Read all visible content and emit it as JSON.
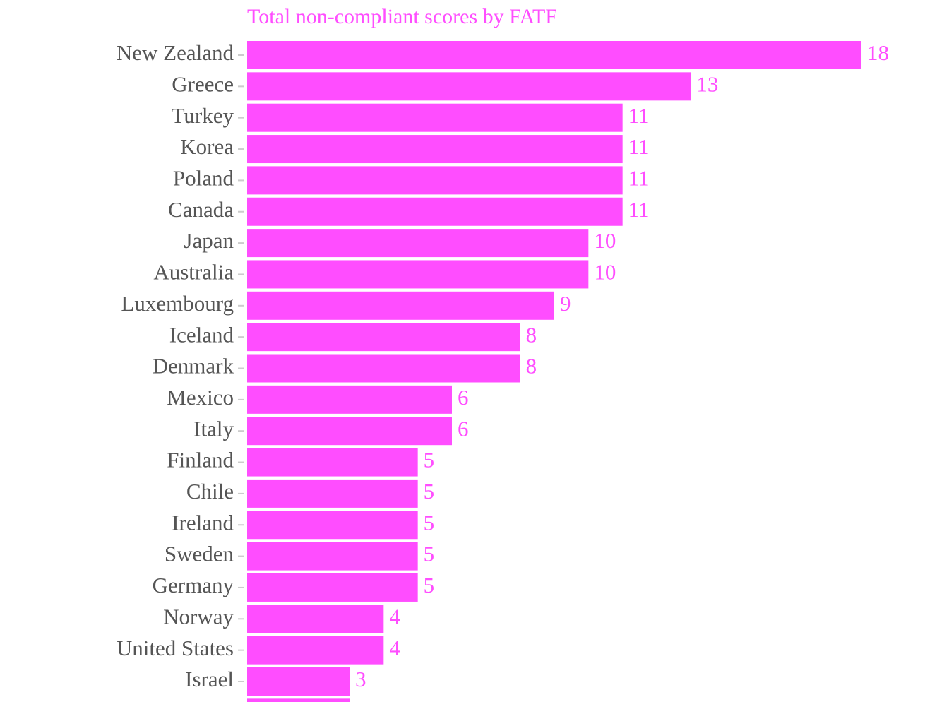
{
  "chart_data": {
    "type": "bar",
    "orientation": "horizontal",
    "title": "Total non-compliant scores by FATF",
    "categories": [
      "New Zealand",
      "Greece",
      "Turkey",
      "Korea",
      "Poland",
      "Canada",
      "Japan",
      "Australia",
      "Luxembourg",
      "Iceland",
      "Denmark",
      "Mexico",
      "Italy",
      "Finland",
      "Chile",
      "Ireland",
      "Sweden",
      "Germany",
      "Norway",
      "United States",
      "Israel",
      null
    ],
    "values": [
      18,
      13,
      11,
      11,
      11,
      11,
      10,
      10,
      9,
      8,
      8,
      6,
      6,
      5,
      5,
      5,
      5,
      5,
      4,
      4,
      3,
      3
    ],
    "color": "#ff4dff",
    "xlim": [
      0,
      18
    ]
  }
}
